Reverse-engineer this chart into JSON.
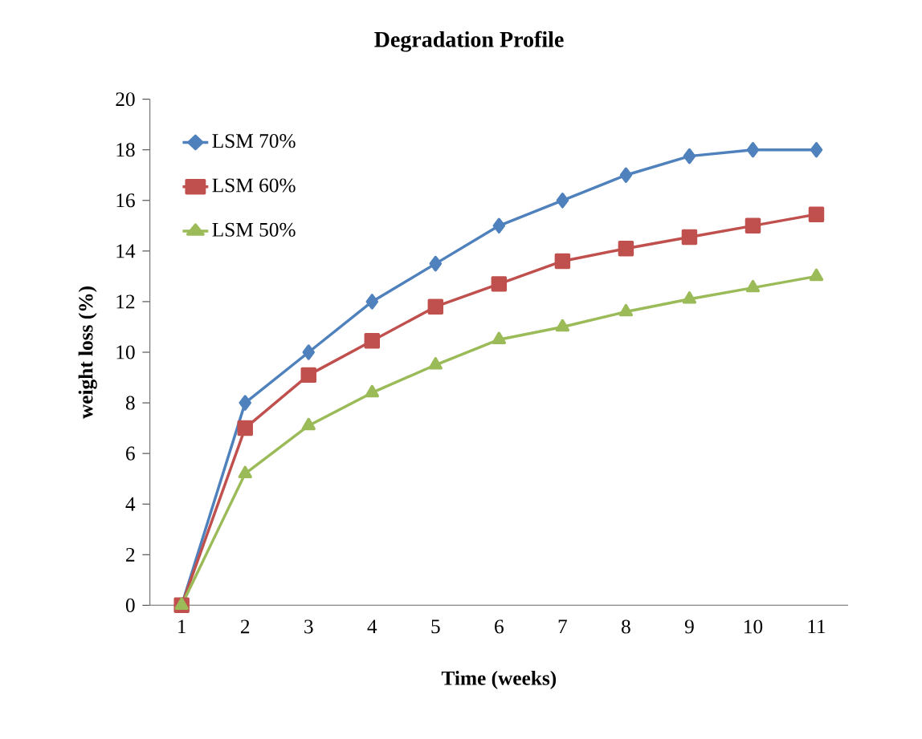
{
  "chart_data": {
    "type": "line",
    "title": "Degradation Profile",
    "xlabel": "Time (weeks)",
    "ylabel": "weight loss (%)",
    "categories": [
      "1",
      "2",
      "3",
      "4",
      "5",
      "6",
      "7",
      "8",
      "9",
      "10",
      "11"
    ],
    "series": [
      {
        "name": "LSM 70%",
        "color": "#4f81bd",
        "marker": "diamond",
        "values": [
          0,
          8,
          10,
          12,
          13.5,
          15,
          16,
          17,
          17.75,
          18,
          18
        ]
      },
      {
        "name": "LSM 60%",
        "color": "#c0504d",
        "marker": "square",
        "values": [
          0,
          7,
          9.1,
          10.45,
          11.8,
          12.7,
          13.6,
          14.1,
          14.55,
          15,
          15.45
        ]
      },
      {
        "name": "LSM 50%",
        "color": "#9bbb59",
        "marker": "triangle",
        "values": [
          0,
          5.2,
          7.1,
          8.4,
          9.5,
          10.5,
          11,
          11.6,
          12.1,
          12.55,
          13
        ]
      }
    ],
    "ylim": [
      0,
      20
    ],
    "yticks": [
      0,
      2,
      4,
      6,
      8,
      10,
      12,
      14,
      16,
      18,
      20
    ],
    "legend": "top left",
    "line_style": "solid"
  }
}
